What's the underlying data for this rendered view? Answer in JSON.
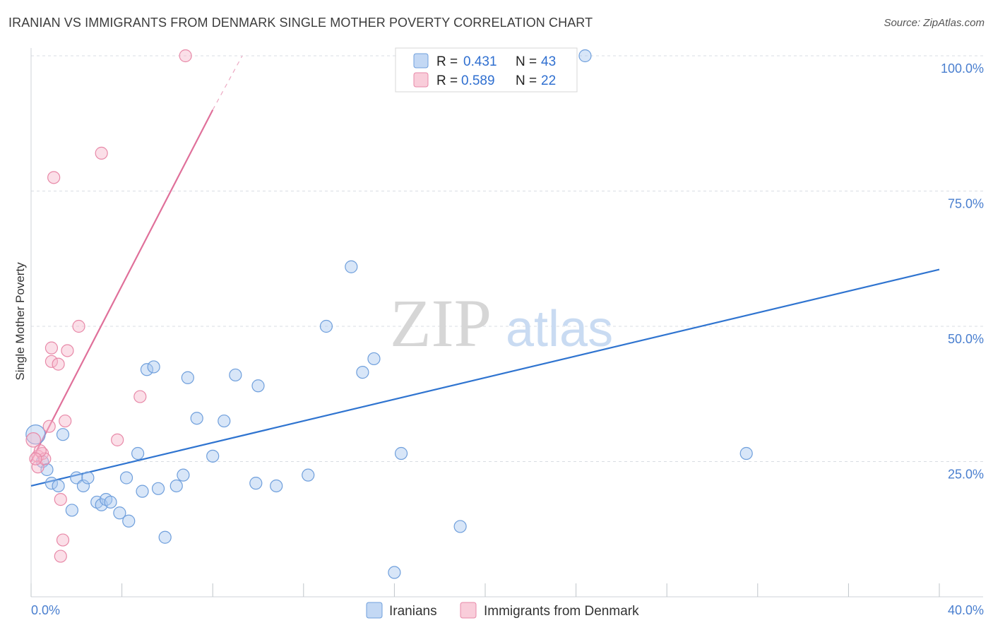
{
  "title": "IRANIAN VS IMMIGRANTS FROM DENMARK SINGLE MOTHER POVERTY CORRELATION CHART",
  "source": "Source: ZipAtlas.com",
  "watermark": {
    "zip": "ZIP",
    "atlas": "atlas"
  },
  "colors": {
    "blue_fill": "#a9c8f0",
    "blue_stroke": "#6f9fdc",
    "blue_line": "#2f74d0",
    "pink_fill": "#f6b8cb",
    "pink_stroke": "#e889a8",
    "pink_line": "#e0709a",
    "grid": "#d9dde3",
    "tick_text": "#4a7fcf"
  },
  "legend": {
    "rows": [
      {
        "r_label": "R =",
        "r_value": "0.431",
        "n_label": "N =",
        "n_value": "43"
      },
      {
        "r_label": "R =",
        "r_value": "0.589",
        "n_label": "N =",
        "n_value": "22"
      }
    ]
  },
  "chart_data": {
    "type": "scatter",
    "title": "IRANIAN VS IMMIGRANTS FROM DENMARK SINGLE MOTHER POVERTY CORRELATION CHART",
    "xlabel": "",
    "ylabel": "Single Mother Poverty",
    "xlim": [
      0,
      40
    ],
    "ylim": [
      0,
      102
    ],
    "x_ticks": [
      "0.0%",
      "40.0%"
    ],
    "y_ticks": [
      {
        "value": 25,
        "label": "25.0%"
      },
      {
        "value": 50,
        "label": "50.0%"
      },
      {
        "value": 75,
        "label": "75.0%"
      },
      {
        "value": 100,
        "label": "100.0%"
      }
    ],
    "grid": true,
    "legend_position": "top-center",
    "series": [
      {
        "name": "Iranians",
        "color": "#a9c8f0",
        "trend": {
          "x0": 0,
          "y0": 20.5,
          "x1": 40,
          "y1": 60.5
        },
        "points": [
          [
            0.2,
            30.0,
            16
          ],
          [
            0.5,
            25.0,
            10
          ],
          [
            0.7,
            23.5,
            10
          ],
          [
            0.9,
            21.0,
            10
          ],
          [
            1.2,
            20.5,
            10
          ],
          [
            1.4,
            30.0,
            10
          ],
          [
            1.8,
            16.0,
            10
          ],
          [
            2.0,
            22.0,
            10
          ],
          [
            2.3,
            20.5,
            10
          ],
          [
            2.5,
            22.0,
            10
          ],
          [
            2.9,
            17.5,
            10
          ],
          [
            3.1,
            17.0,
            10
          ],
          [
            3.3,
            18.0,
            10
          ],
          [
            3.5,
            17.5,
            10
          ],
          [
            3.9,
            15.5,
            10
          ],
          [
            4.2,
            22.0,
            10
          ],
          [
            4.3,
            14.0,
            10
          ],
          [
            4.7,
            26.5,
            10
          ],
          [
            4.9,
            19.5,
            10
          ],
          [
            5.1,
            42.0,
            10
          ],
          [
            5.4,
            42.5,
            10
          ],
          [
            5.6,
            20.0,
            10
          ],
          [
            5.9,
            11.0,
            10
          ],
          [
            6.4,
            20.5,
            10
          ],
          [
            6.7,
            22.5,
            10
          ],
          [
            6.9,
            40.5,
            10
          ],
          [
            7.3,
            33.0,
            10
          ],
          [
            8.0,
            26.0,
            10
          ],
          [
            8.5,
            32.5,
            10
          ],
          [
            9.0,
            41.0,
            10
          ],
          [
            9.9,
            21.0,
            10
          ],
          [
            10.0,
            39.0,
            10
          ],
          [
            10.8,
            20.5,
            10
          ],
          [
            12.2,
            22.5,
            10
          ],
          [
            13.0,
            50.0,
            10
          ],
          [
            14.1,
            61.0,
            10
          ],
          [
            14.6,
            41.5,
            10
          ],
          [
            15.1,
            44.0,
            10
          ],
          [
            16.0,
            4.5,
            10
          ],
          [
            16.3,
            26.5,
            10
          ],
          [
            18.9,
            13.0,
            10
          ],
          [
            24.4,
            100.0,
            10
          ],
          [
            31.5,
            26.5,
            10
          ]
        ]
      },
      {
        "name": "Immigrants from Denmark",
        "color": "#f6b8cb",
        "trend": {
          "x0": 0,
          "y0": 25.0,
          "x1": 8.0,
          "y1": 90.0,
          "dash_to": {
            "x": 9.3,
            "y": 100.0
          }
        },
        "points": [
          [
            0.1,
            29.0,
            12
          ],
          [
            0.3,
            26.0,
            10
          ],
          [
            0.3,
            24.0,
            10
          ],
          [
            0.5,
            26.5,
            10
          ],
          [
            0.6,
            25.5,
            10
          ],
          [
            0.8,
            31.5,
            10
          ],
          [
            0.9,
            46.0,
            10
          ],
          [
            0.9,
            43.5,
            10
          ],
          [
            1.0,
            77.5,
            10
          ],
          [
            1.2,
            43.0,
            10
          ],
          [
            1.3,
            18.0,
            10
          ],
          [
            1.4,
            10.5,
            10
          ],
          [
            1.3,
            7.5,
            10
          ],
          [
            1.5,
            32.5,
            10
          ],
          [
            1.6,
            45.5,
            10
          ],
          [
            2.1,
            50.0,
            10
          ],
          [
            3.1,
            82.0,
            10
          ],
          [
            3.8,
            29.0,
            10
          ],
          [
            4.8,
            37.0,
            10
          ],
          [
            6.8,
            100.0,
            10
          ],
          [
            0.4,
            27.0,
            10
          ],
          [
            0.2,
            25.5,
            10
          ]
        ]
      }
    ]
  }
}
